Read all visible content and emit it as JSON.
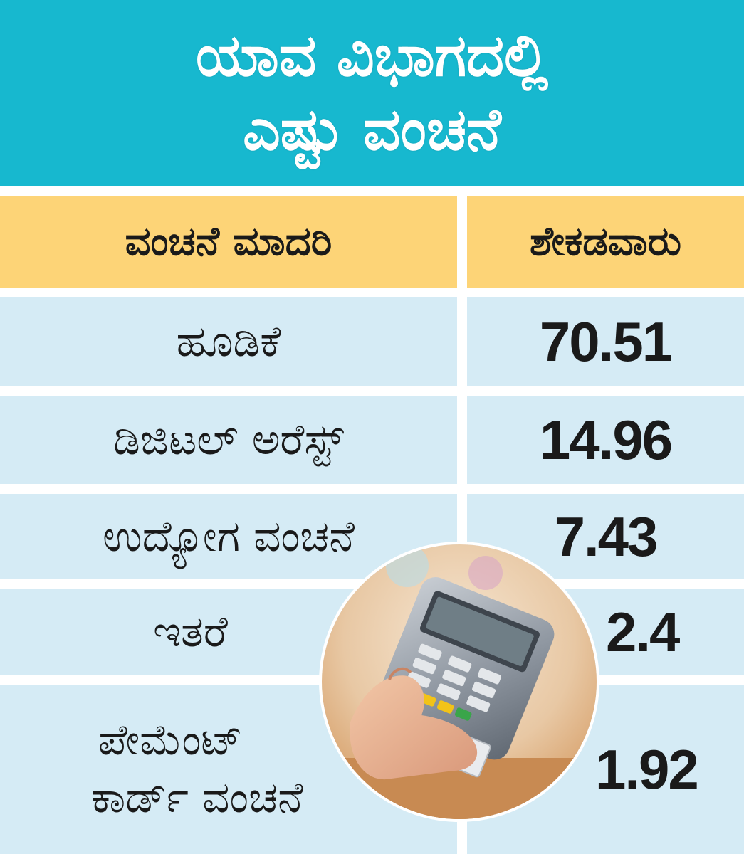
{
  "title": {
    "line1": "ಯಾವ ವಿಭಾಗದಲ್ಲಿ",
    "line2": "ಎಷ್ಟು ವಂಚನೆ"
  },
  "table": {
    "headers": [
      "ವಂಚನೆ ಮಾದರಿ",
      "ಶೇಕಡವಾರು"
    ],
    "rows": [
      {
        "category": "ಹೂಡಿಕೆ",
        "value": "70.51"
      },
      {
        "category": "ಡಿಜಿಟಲ್ ಅರೆಸ್ಟ್",
        "value": "14.96"
      },
      {
        "category": "ಉದ್ಯೋಗ ವಂಚನೆ",
        "value": "7.43"
      },
      {
        "category": "ಇತರೆ",
        "value": "2.4"
      },
      {
        "category_line1": "ಪೇಮೆಂಟ್",
        "category_line2": "ಕಾರ್ಡ್ ವಂಚನೆ",
        "value": "1.92"
      }
    ]
  },
  "photo": {
    "icon": "card-payment-terminal-icon"
  },
  "colors": {
    "banner": "#17b8cf",
    "header_row": "#fdd477",
    "data_row": "#d5ebf5"
  }
}
